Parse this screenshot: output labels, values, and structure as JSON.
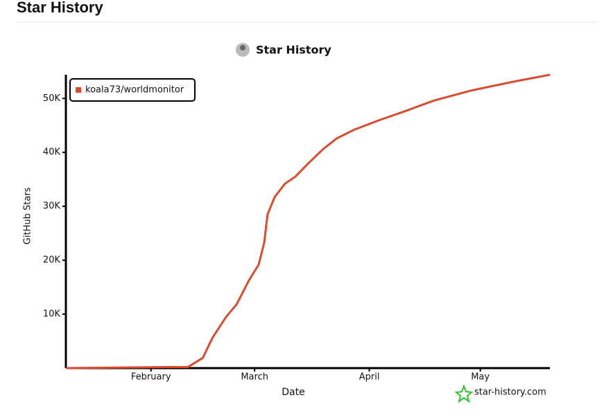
{
  "page_title": "Star History",
  "chart_data": {
    "type": "line",
    "title": "Star History",
    "x_label": "Date",
    "y_label": "GitHub Stars",
    "credit": "star-history.com",
    "x": [
      9,
      36,
      42,
      46,
      48.6,
      52.3,
      55.1,
      58.5,
      61.1,
      62.6,
      63.5,
      65.4,
      68.2,
      71,
      74.7,
      78.5,
      82.2,
      86.9,
      93.4,
      100.9,
      108.4,
      118.7,
      129.9,
      139.8
    ],
    "series": [
      {
        "name": "koala73/worldmonitor",
        "color": "#dd4b2f",
        "values": [
          0,
          200,
          200,
          1900,
          5600,
          9500,
          11800,
          16300,
          19200,
          23300,
          28500,
          31700,
          34200,
          35500,
          38100,
          40600,
          42600,
          44200,
          45900,
          47700,
          49600,
          51500,
          53100,
          54400
        ]
      }
    ],
    "xlim": [
      9,
      139.8
    ],
    "xticks": [
      {
        "value": 32,
        "label": "February"
      },
      {
        "value": 60,
        "label": "March"
      },
      {
        "value": 91,
        "label": "April"
      },
      {
        "value": 121,
        "label": "May"
      }
    ],
    "ylim": [
      0,
      54400
    ],
    "yticks": [
      {
        "value": 10000,
        "label": "10K"
      },
      {
        "value": 20000,
        "label": "20K"
      },
      {
        "value": 30000,
        "label": "30K"
      },
      {
        "value": 40000,
        "label": "40K"
      },
      {
        "value": 50000,
        "label": "50K"
      }
    ],
    "legend": "top-left"
  }
}
